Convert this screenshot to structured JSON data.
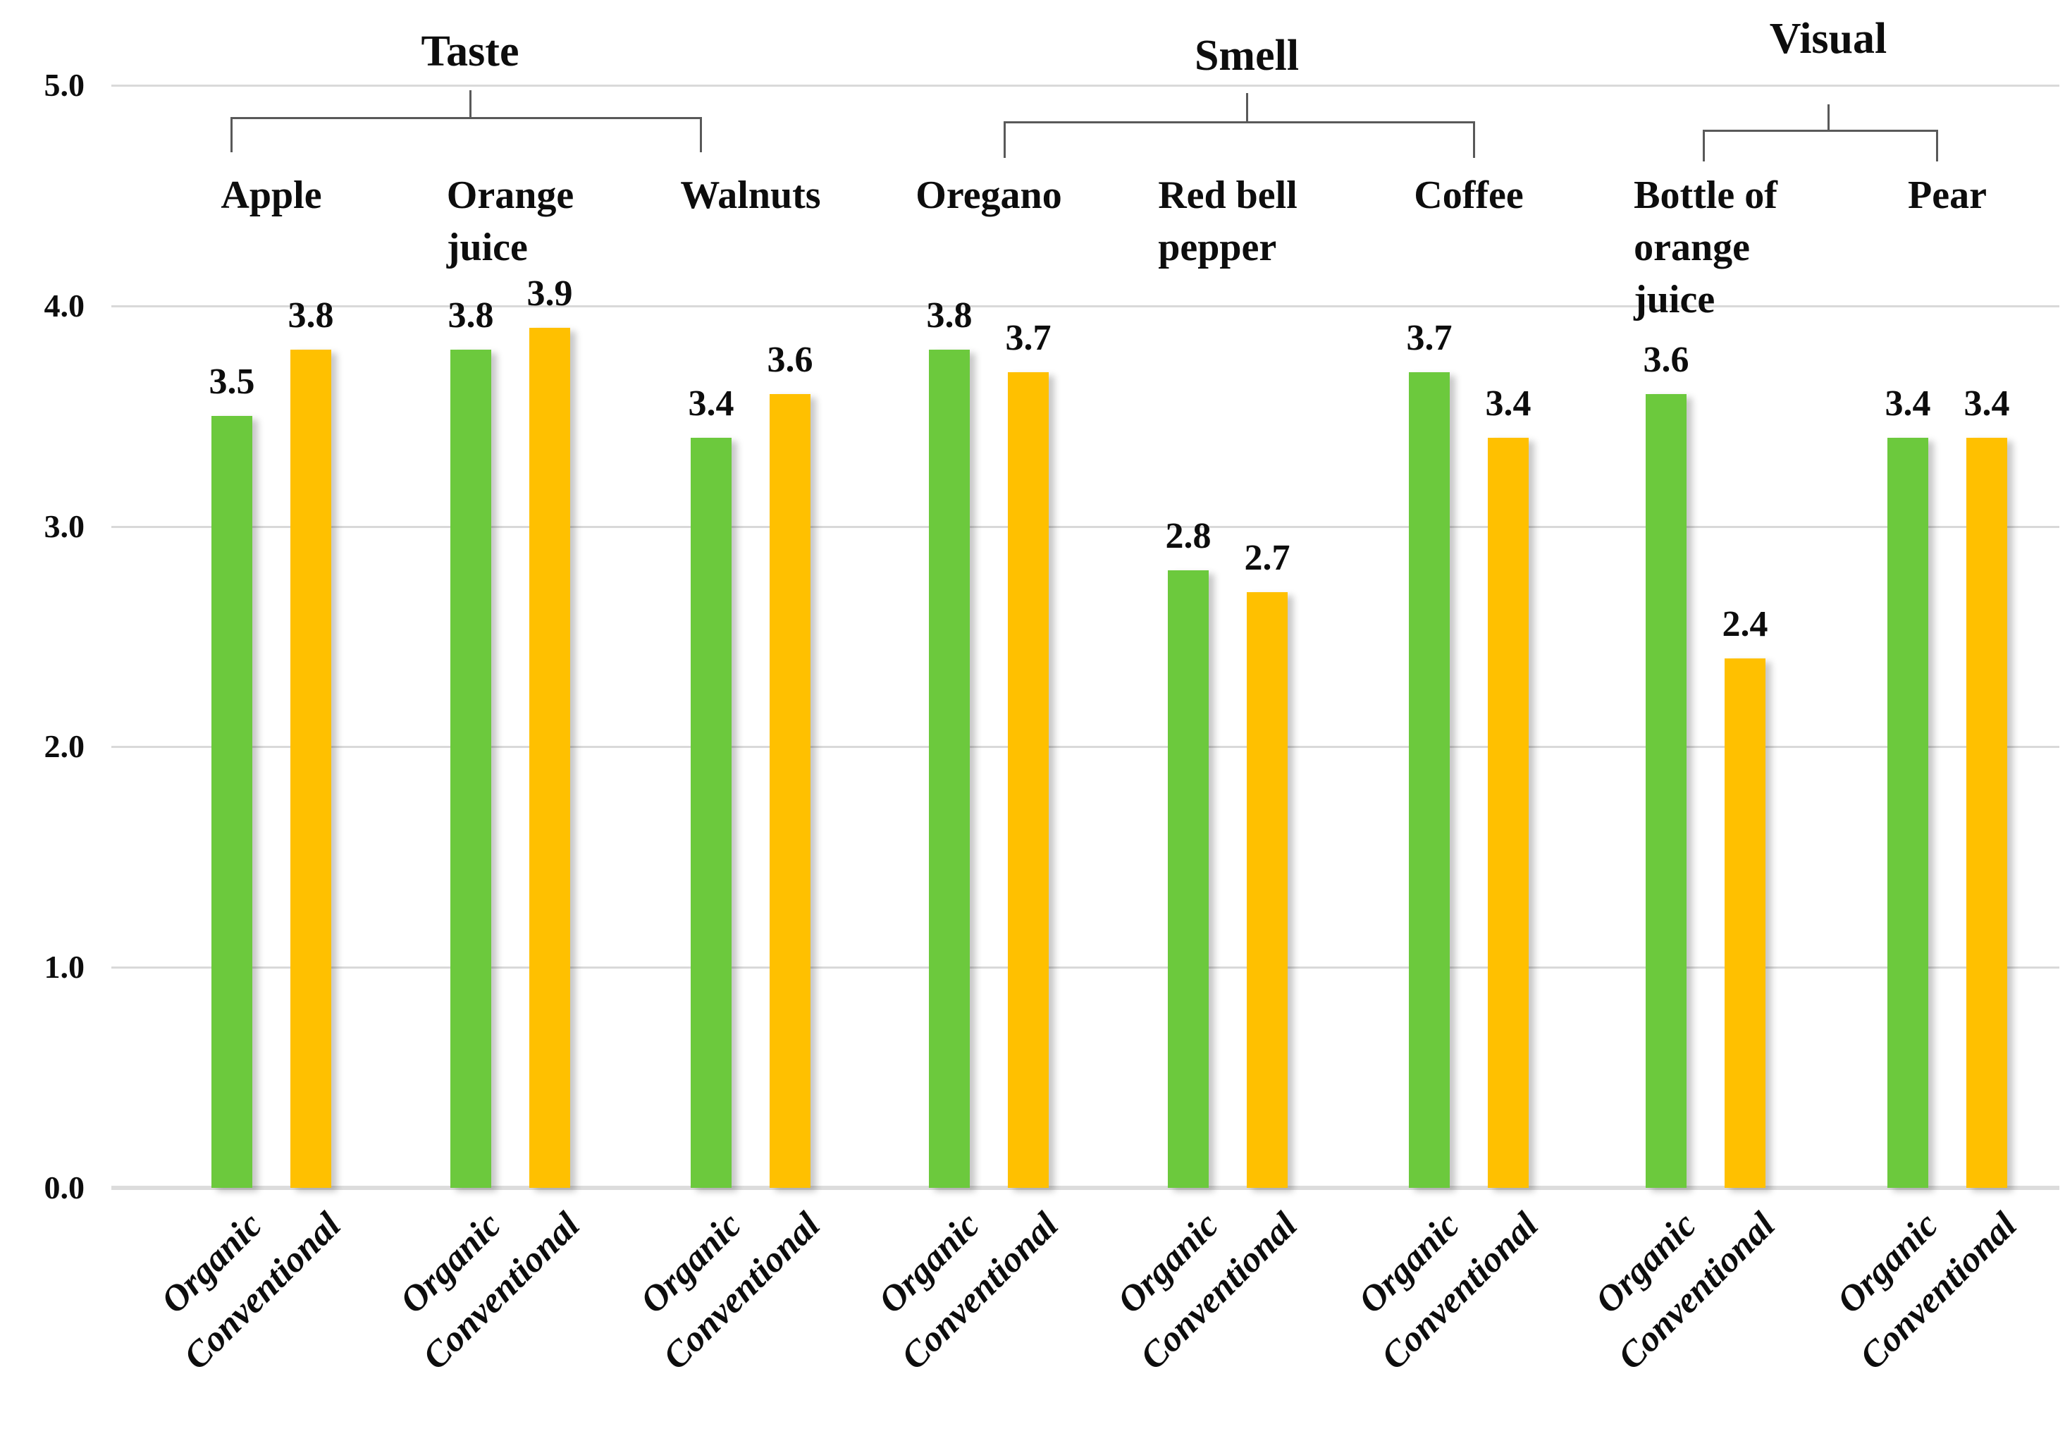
{
  "chart_data": {
    "type": "bar",
    "title": "",
    "ylabel": "",
    "xlabel": "",
    "ylim": [
      0.0,
      5.0
    ],
    "grid": true,
    "legend_position": "none",
    "ytick_labels": [
      "5.0",
      "4.0",
      "3.0",
      "2.0",
      "1.0",
      "0.0"
    ],
    "series": [
      {
        "name": "Organic",
        "color": "#6CC93D"
      },
      {
        "name": "Conventional",
        "color": "#FFC000"
      }
    ],
    "groups": [
      {
        "label": "Taste",
        "items": [
          {
            "label": "Apple",
            "values": [
              3.5,
              3.8
            ]
          },
          {
            "label": "Orange\njuice",
            "values": [
              3.8,
              3.9
            ]
          },
          {
            "label": "Walnuts",
            "values": [
              3.4,
              3.6
            ]
          }
        ]
      },
      {
        "label": "Smell",
        "items": [
          {
            "label": "Oregano",
            "values": [
              3.8,
              3.7
            ]
          },
          {
            "label": "Red bell\npepper",
            "values": [
              2.8,
              2.7
            ]
          },
          {
            "label": "Coffee",
            "values": [
              3.7,
              3.4
            ]
          }
        ]
      },
      {
        "label": "Visual",
        "items": [
          {
            "label": "Bottle of\norange\njuice",
            "values": [
              3.6,
              2.4
            ]
          },
          {
            "label": "Pear",
            "values": [
              3.4,
              3.4
            ]
          }
        ]
      }
    ],
    "bar_axis_labels": [
      "Organic",
      "Conventional"
    ],
    "value_label_format": "one_decimal",
    "colors": {
      "gridline": "#d9d9d9",
      "bracket": "#595959",
      "text": "#0d0d0d",
      "background": "#ffffff"
    }
  }
}
